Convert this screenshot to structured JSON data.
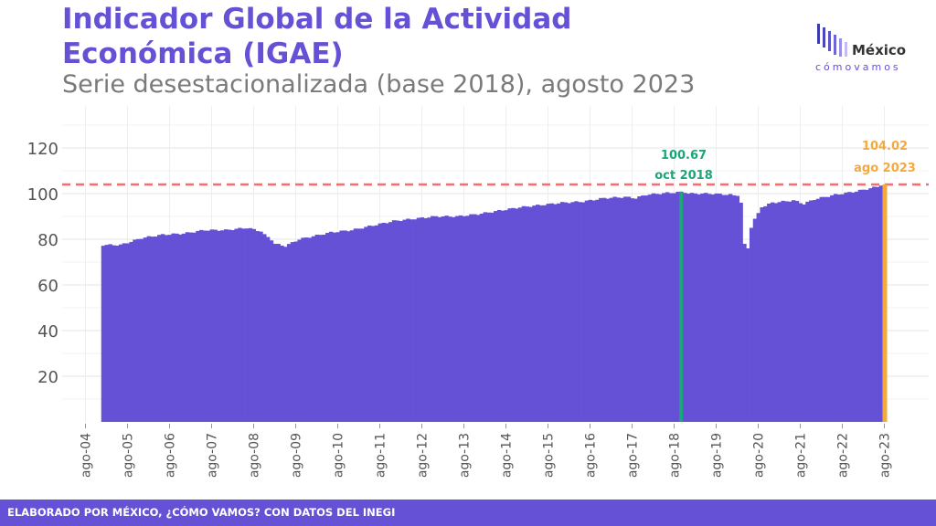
{
  "header": {
    "title": "Indicador Global de la Actividad Económica (IGAE)",
    "subtitle": "Serie desestacionalizada (base 2018), agosto 2023"
  },
  "logo": {
    "brand_top": "México",
    "brand_bottom": "cómovamos"
  },
  "footer": {
    "text": "ELABORADO POR MÉXICO, ¿CÓMO VAMOS? CON DATOS DEL INEGI"
  },
  "colors": {
    "bars": "#6551d6",
    "reference_line": "#ff6b6b",
    "peak_marker": "#1aa57a",
    "latest_marker": "#f5a83b",
    "text_gray": "#555555"
  },
  "chart_data": {
    "type": "bar",
    "xlabel": "",
    "ylabel": "",
    "ylim": [
      0,
      130
    ],
    "grid": true,
    "y_ticks": [
      20,
      40,
      60,
      80,
      100,
      120
    ],
    "x_ticks": [
      "ago-04",
      "ago-05",
      "ago-06",
      "ago-07",
      "ago-08",
      "ago-09",
      "ago-10",
      "ago-11",
      "ago-12",
      "ago-13",
      "ago-14",
      "ago-15",
      "ago-16",
      "ago-17",
      "ago-18",
      "ago-19",
      "ago-20",
      "ago-21",
      "ago-22",
      "ago-23"
    ],
    "series_start": "2005-01",
    "series_end": "2023-08",
    "anchors": [
      [
        "2005-01",
        77.5
      ],
      [
        "2005-06",
        77.5
      ],
      [
        "2005-12",
        80.5
      ],
      [
        "2006-06",
        82
      ],
      [
        "2006-12",
        82.5
      ],
      [
        "2007-06",
        84
      ],
      [
        "2007-12",
        84
      ],
      [
        "2008-06",
        85
      ],
      [
        "2008-10",
        83.5
      ],
      [
        "2008-12",
        81
      ],
      [
        "2009-02",
        78
      ],
      [
        "2009-05",
        77
      ],
      [
        "2009-09",
        80
      ],
      [
        "2009-12",
        81
      ],
      [
        "2010-06",
        83
      ],
      [
        "2010-12",
        84
      ],
      [
        "2011-06",
        86
      ],
      [
        "2011-12",
        88
      ],
      [
        "2012-06",
        89
      ],
      [
        "2012-12",
        90
      ],
      [
        "2013-06",
        90
      ],
      [
        "2013-12",
        91
      ],
      [
        "2014-06",
        92.5
      ],
      [
        "2014-12",
        94
      ],
      [
        "2015-06",
        95
      ],
      [
        "2015-12",
        96
      ],
      [
        "2016-06",
        96.5
      ],
      [
        "2016-12",
        98
      ],
      [
        "2017-06",
        98.5
      ],
      [
        "2017-09",
        98
      ],
      [
        "2017-12",
        99.5
      ],
      [
        "2018-06",
        100.3
      ],
      [
        "2018-10",
        100.67
      ],
      [
        "2018-12",
        100
      ],
      [
        "2019-06",
        100
      ],
      [
        "2019-12",
        99.5
      ],
      [
        "2020-02",
        99
      ],
      [
        "2020-03",
        96
      ],
      [
        "2020-04",
        78
      ],
      [
        "2020-05",
        76
      ],
      [
        "2020-06",
        85
      ],
      [
        "2020-07",
        89
      ],
      [
        "2020-09",
        94
      ],
      [
        "2020-12",
        96
      ],
      [
        "2021-06",
        97
      ],
      [
        "2021-09",
        95.5
      ],
      [
        "2021-12",
        97.5
      ],
      [
        "2022-06",
        99.5
      ],
      [
        "2022-12",
        101
      ],
      [
        "2023-06",
        103
      ],
      [
        "2023-08",
        104.02
      ]
    ],
    "reference_value": 104.02,
    "annotations": [
      {
        "value": "100.67",
        "date": "oct 2018"
      },
      {
        "value": "104.02",
        "date": "ago 2023"
      }
    ]
  }
}
